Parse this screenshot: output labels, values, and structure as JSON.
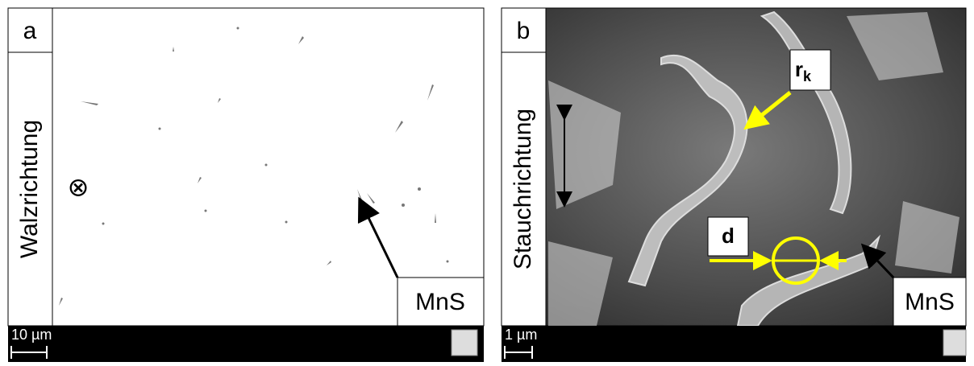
{
  "panels": [
    {
      "label": "a",
      "direction": "Walzrichtung",
      "symbol": "⊗",
      "annotation": "MnS",
      "scale": "10 µm"
    },
    {
      "label": "b",
      "direction": "Stauchrichtung",
      "radius": {
        "base": "r",
        "sub": "k"
      },
      "diameter": "d",
      "annotation": "MnS",
      "scale": "1 µm"
    }
  ]
}
